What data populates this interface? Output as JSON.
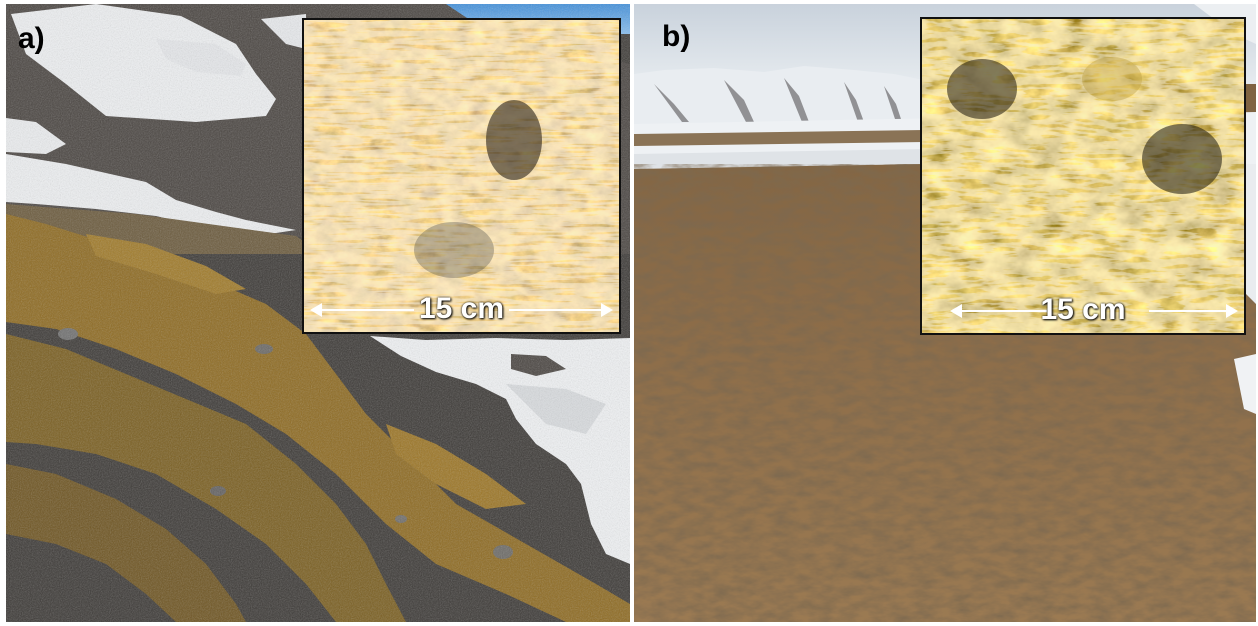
{
  "panels": [
    {
      "label": "a)",
      "scale_label": "15 cm"
    },
    {
      "label": "b)",
      "scale_label": "15 cm"
    }
  ],
  "colors": {
    "snow": "#f2f3f5",
    "moss_orange": "#9a6a1c",
    "gravel": "#4a4743",
    "sky": "#5c9fd9",
    "brown_turf": "#8c6a42"
  }
}
